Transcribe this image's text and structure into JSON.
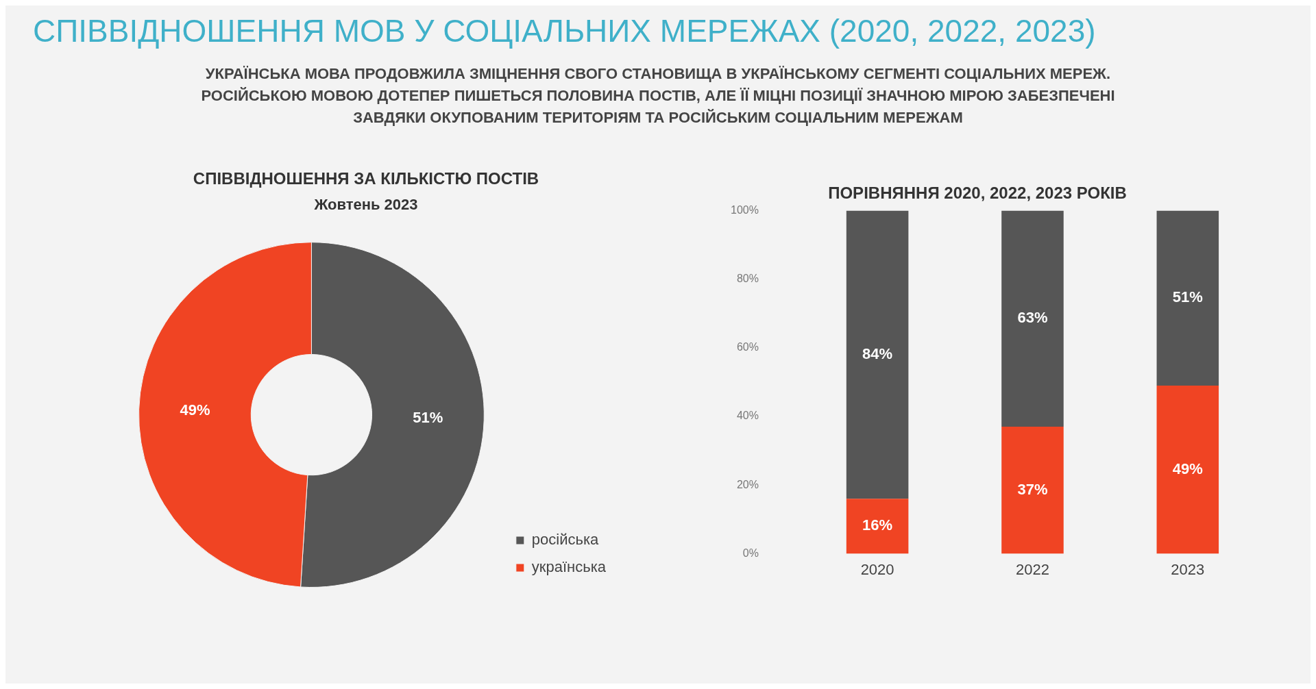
{
  "chart_data": [
    {
      "type": "other",
      "title": "СПІВВІДНОШЕННЯ МОВ У СОЦІАЛЬНИХ МЕРЕЖАХ (2020, 2022, 2023)",
      "subtitle": "УКРАЇНСЬКА МОВА ПРОДОВЖИЛА ЗМІЦНЕННЯ СВОГО СТАНОВИЩА В УКРАЇНСЬКОМУ СЕГМЕНТІ СОЦІАЛЬНИХ МЕРЕЖ. РОСІЙСЬКОЮ МОВОЮ ДОТЕПЕР ПИШЕТЬСЯ ПОЛОВИНА ПОСТІВ, АЛЕ ЇЇ МІЦНІ ПОЗИЦІЇ ЗНАЧНОЮ МІРОЮ ЗАБЕЗПЕЧЕНІ ЗАВДЯКИ ОКУПОВАНИМ ТЕРИТОРІЯМ ТА РОСІЙСЬКИМ СОЦІАЛЬНИМ МЕРЕЖАМ"
    },
    {
      "type": "donut",
      "title": "СПІВВІДНОШЕННЯ ЗА КІЛЬКІСТЮ ПОСТІВ",
      "subtitle": "Жовтень 2023",
      "categories": [
        "російська",
        "українська"
      ],
      "values": [
        51,
        49
      ],
      "colors": [
        "#565656",
        "#f04423"
      ],
      "value_labels": [
        "51%",
        "49%"
      ],
      "legend": "bottom right"
    },
    {
      "type": "bar",
      "title": "ПОРІВНЯННЯ 2020, 2022, 2023 РОКІВ",
      "categories": [
        "2020",
        "2022",
        "2023"
      ],
      "stacked": true,
      "series": [
        {
          "color": "#f04423",
          "values": [
            16,
            37,
            49
          ],
          "value_labels": [
            "16%",
            "37%",
            "49%"
          ]
        },
        {
          "color": "#565656",
          "values": [
            84,
            63,
            51
          ],
          "value_labels": [
            "84%",
            "63%",
            "51%"
          ]
        }
      ],
      "ylim": [
        0,
        100
      ],
      "yticks": [
        {
          "value": 0,
          "label": "0%"
        },
        {
          "value": 20,
          "label": "20%"
        },
        {
          "value": 40,
          "label": "40%"
        },
        {
          "value": 60,
          "label": "60%"
        },
        {
          "value": 80,
          "label": "80%"
        },
        {
          "value": 100,
          "label": "100%"
        }
      ]
    }
  ]
}
